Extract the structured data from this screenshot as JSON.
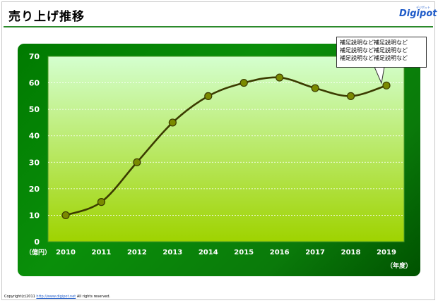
{
  "header": {
    "title": "売り上げ推移",
    "logo_text": "Digipot",
    "logo_sub": "デジポット"
  },
  "callout": {
    "lines": [
      "補足説明など補足説明など",
      "補足説明など補足説明など",
      "補足説明など補足説明など"
    ]
  },
  "footer": {
    "copyright_prefix": "Copyright(c)2011 ",
    "link_text": "http://www.digipot.net",
    "copyright_suffix": " All rights reserved."
  },
  "colors": {
    "panel_green": "#0a8f0a",
    "plot_top": "#d4ffcf",
    "plot_bottom": "#9fd300",
    "line": "#3b3b00",
    "marker": "#7a8a00"
  },
  "chart_data": {
    "type": "line",
    "categories": [
      "2010",
      "2011",
      "2012",
      "2013",
      "2014",
      "2015",
      "2016",
      "2017",
      "2018",
      "2019"
    ],
    "values": [
      10,
      15,
      30,
      45,
      55,
      60,
      62,
      58,
      55,
      59
    ],
    "y_ticks": [
      "0",
      "10",
      "20",
      "30",
      "40",
      "50",
      "60",
      "70"
    ],
    "ylim": [
      0,
      70
    ],
    "ylabel": "（億円）",
    "xlabel": "（年度）",
    "smooth": true,
    "grid": true
  }
}
